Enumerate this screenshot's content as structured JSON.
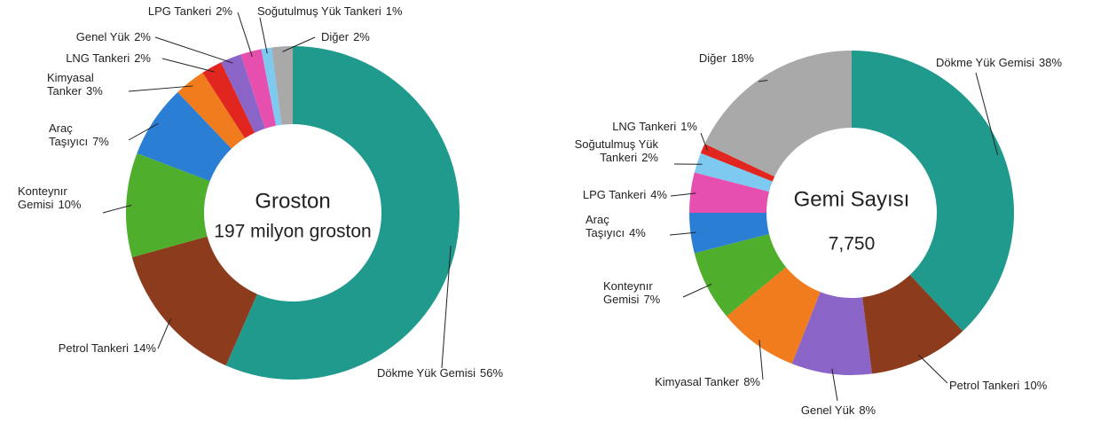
{
  "chart_data": [
    {
      "type": "donut",
      "center_title": "Groston",
      "center_text": "197 milyon groston",
      "categories": [
        "Dökme Yük Gemisi",
        "Petrol Tankeri",
        "Konteynır Gemisi",
        "Araç Taşıyıcı",
        "Kimyasal Tanker",
        "LNG Tankeri",
        "Genel Yük",
        "LPG Tankeri",
        "Soğutulmuş Yük Tankeri",
        "Diğer"
      ],
      "values": [
        56,
        14,
        10,
        7,
        3,
        2,
        2,
        2,
        1,
        2
      ],
      "value_labels": [
        "56%",
        "14%",
        "10%",
        "7%",
        "3%",
        "2%",
        "2%",
        "2%",
        "1%",
        "2%"
      ],
      "colors": [
        "#1f9a8c",
        "#8c3b1c",
        "#4fae2c",
        "#2a7fd4",
        "#f07c1e",
        "#e0261e",
        "#8a64c6",
        "#e64fae",
        "#7ec9f0",
        "#a9a9a9"
      ]
    },
    {
      "type": "donut",
      "center_title": "Gemi Sayısı",
      "center_text": "7,750",
      "categories": [
        "Dökme Yük Gemisi",
        "Petrol Tankeri",
        "Genel Yük",
        "Kimyasal Tanker",
        "Konteynır Gemisi",
        "Araç Taşıyıcı",
        "LPG Tankeri",
        "Soğutulmuş Yük Tankeri",
        "LNG Tankeri",
        "Diğer"
      ],
      "values": [
        38,
        10,
        8,
        8,
        7,
        4,
        4,
        2,
        1,
        18
      ],
      "value_labels": [
        "38%",
        "10%",
        "8%",
        "8%",
        "7%",
        "4%",
        "4%",
        "2%",
        "1%",
        "18%"
      ],
      "colors": [
        "#1f9a8c",
        "#8c3b1c",
        "#8a64c6",
        "#f07c1e",
        "#4fae2c",
        "#2a7fd4",
        "#e64fae",
        "#7ec9f0",
        "#e0261e",
        "#a9a9a9"
      ]
    }
  ]
}
